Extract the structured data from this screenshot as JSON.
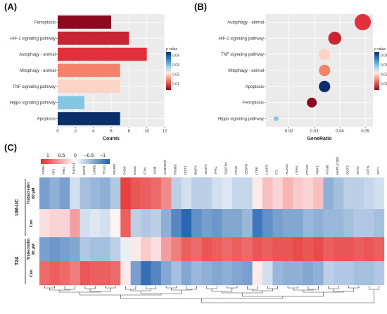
{
  "panels": {
    "a": "(A)",
    "b": "(B)",
    "c": "(C)"
  },
  "chart_data": [
    {
      "type": "bar",
      "orientation": "horizontal",
      "panel": "(A)",
      "categories": [
        "Ferroptosis",
        "HIF-1 signaling pathway",
        "Autophagy - animal",
        "Mitophagy - animal",
        "TNF signaling pathway",
        "Hippo signaling pathway",
        "Apoptosis"
      ],
      "values": [
        6,
        8,
        10,
        7,
        7,
        3,
        7
      ],
      "p_values": [
        0.003,
        0.008,
        0.01,
        0.018,
        0.022,
        0.035,
        0.048
      ],
      "xlabel": "Counts",
      "ylabel": "",
      "xlim": [
        0,
        12
      ],
      "xticks": [
        0,
        2,
        4,
        6,
        8,
        10,
        12
      ],
      "legend": {
        "title": "p value",
        "ticks": [
          "0.04",
          "0.03",
          "0.02",
          "0.01"
        ],
        "range": [
          0.003,
          0.048
        ],
        "position": "right"
      },
      "grid": true
    },
    {
      "type": "scatter",
      "panel": "(B)",
      "categories": [
        "Autophagy - animal",
        "HIF-1 signaling pathway",
        "TNF signaling pathway",
        "Mitophagy - animal",
        "Apoptosis",
        "Ferroptosis",
        "Hippo signaling pathway"
      ],
      "gene_ratio": [
        0.049,
        0.038,
        0.034,
        0.034,
        0.034,
        0.029,
        0.015
      ],
      "counts": [
        10,
        8,
        7,
        7,
        7,
        6,
        3
      ],
      "p_values": [
        0.01,
        0.008,
        0.022,
        0.018,
        0.048,
        0.003,
        0.035
      ],
      "xlabel": "GeneRatio",
      "ylabel": "",
      "xlim": [
        0.011,
        0.053
      ],
      "xticks": [
        "0.02",
        "0.03",
        "0.04",
        "0.05"
      ],
      "xtick_values": [
        0.02,
        0.03,
        0.04,
        0.05
      ],
      "legend": {
        "title": "p value",
        "ticks": [
          "0.04",
          "0.03",
          "0.02",
          "0.01"
        ],
        "range": [
          0.003,
          0.048
        ],
        "position": "right"
      },
      "grid": true
    },
    {
      "type": "heatmap",
      "panel": "(C)",
      "legend_ticks": [
        "1",
        "0.5",
        "0",
        "−0.5",
        "−1"
      ],
      "genes": [
        "AJUBA",
        "NF2",
        "TAB1",
        "TNFRSF",
        "EGFR",
        "LMNB1",
        "TEAD1",
        "PIK3R3",
        "FADD",
        "ENO2",
        "FTH1",
        "JUNB",
        "GABARAP",
        "RAB8B",
        "DDIT4",
        "BNIP3",
        "VEGFA",
        "TFRC",
        "SQSTM1",
        "CTSD",
        "CEBPB",
        "LTBR",
        "LAMP2",
        "FTL",
        "ALDOC",
        "ITPR3",
        "PTGS2",
        "TIMP1",
        "ATG9B",
        "MAP1LC3B2",
        "DDIT3",
        "SIAT2",
        "OPTN",
        "SAT1"
      ],
      "groups": [
        "UM-UC",
        "T24"
      ],
      "rows": [
        {
          "group": "UM-UC",
          "label": "Trabectedin\n80 μM",
          "values": [
            -0.6,
            -0.5,
            -0.6,
            -0.2,
            -0.4,
            -0.45,
            -0.5,
            -0.35,
            0.9,
            0.8,
            0.75,
            0.7,
            0.55,
            -0.3,
            -0.2,
            -0.3,
            -0.3,
            -0.2,
            -0.15,
            -0.25,
            -0.25,
            0.1,
            0.3,
            0.2,
            0.35,
            0.25,
            0.2,
            0.3,
            -0.5,
            -0.4,
            -0.3,
            -0.3,
            -0.25,
            -0.2
          ]
        },
        {
          "group": "UM-UC",
          "label": "Con",
          "values": [
            0.15,
            0.2,
            0.2,
            0.45,
            -0.2,
            -0.15,
            -0.2,
            0.05,
            0.75,
            -0.3,
            -0.35,
            -0.3,
            -0.5,
            -0.75,
            -0.95,
            -0.7,
            -0.6,
            -0.65,
            -0.55,
            -0.55,
            -0.45,
            -0.85,
            -0.7,
            -0.6,
            -0.55,
            -0.55,
            -0.45,
            -0.5,
            -0.45,
            -0.45,
            -0.4,
            -0.35,
            -0.35,
            -0.4
          ]
        },
        {
          "group": "T24",
          "label": "Trabectedin\n80 μM",
          "values": [
            -0.6,
            -0.65,
            -0.6,
            -0.55,
            -0.35,
            -0.4,
            -0.4,
            -0.3,
            -0.1,
            0.1,
            0.25,
            0.15,
            0.45,
            0.6,
            0.75,
            0.7,
            0.8,
            0.75,
            0.7,
            0.75,
            0.7,
            0.8,
            0.75,
            0.8,
            0.8,
            0.85,
            0.8,
            0.85,
            0.75,
            0.8,
            0.8,
            0.75,
            0.8,
            0.75
          ]
        },
        {
          "group": "T24",
          "label": "Con",
          "values": [
            0.7,
            0.75,
            0.7,
            0.6,
            0.8,
            0.75,
            0.75,
            0.7,
            0.1,
            -0.6,
            -0.9,
            -0.75,
            -0.55,
            -0.4,
            -0.55,
            -0.45,
            -0.5,
            -0.55,
            -0.5,
            -0.55,
            -0.6,
            0.1,
            -0.2,
            -0.45,
            -0.5,
            -0.5,
            -0.55,
            -0.5,
            -0.3,
            -0.35,
            -0.35,
            -0.4,
            -0.4,
            -0.35
          ]
        }
      ]
    }
  ],
  "colors": {
    "pvalue_low": "#8b0a1e",
    "pvalue_mid1": "#e0303a",
    "pvalue_mid2": "#f4826a",
    "pvalue_mid3": "#fde8df",
    "pvalue_mid4": "#83c7e3",
    "pvalue_high": "#0b2f6b",
    "heat_pos": "#e52a2a",
    "heat_zero": "#ffffff",
    "heat_neg": "#1f5fae"
  }
}
